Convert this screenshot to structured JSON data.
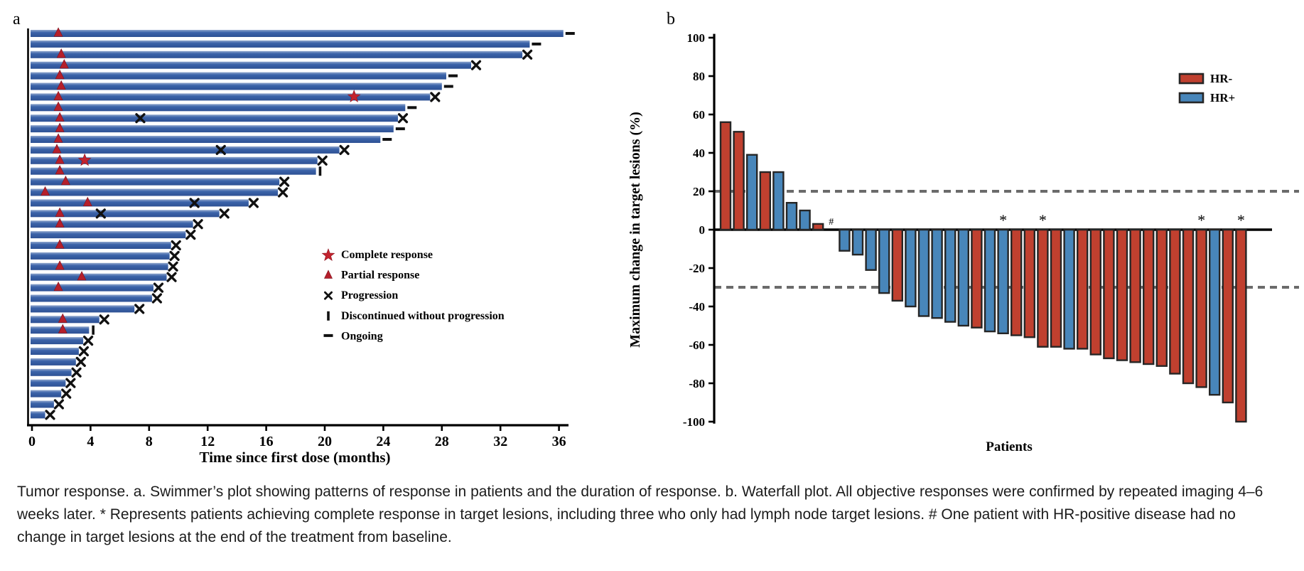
{
  "colors": {
    "swimmer_bar": "#3b63a9",
    "swimmer_bar_light": "#8fa6cd",
    "marker_red": "#b51f2b",
    "star_red": "#c3232e",
    "hr_neg": "#c0402f",
    "hr_pos": "#4886ba",
    "axis": "#000000",
    "marker_black": "#111111",
    "ref_line": "#6b6b6b",
    "waterfall_border": "#262626",
    "caption_text": "#1b1b1b"
  },
  "chart_data": [
    {
      "type": "bar",
      "subtype": "swimmer",
      "panel_label": "a",
      "xlabel": "Time since first dose (months)",
      "xticks": [
        0,
        4,
        8,
        12,
        16,
        20,
        24,
        28,
        32,
        36
      ],
      "xlim": [
        0,
        37.5
      ],
      "grid": false,
      "legend_position": "right-middle",
      "legend": [
        {
          "icon": "star-icon",
          "label": "Complete response"
        },
        {
          "icon": "triangle-icon",
          "label": "Partial response"
        },
        {
          "icon": "cross-icon",
          "label": "Progression"
        },
        {
          "icon": "vbar-icon",
          "label": "Discontinued without progression"
        },
        {
          "icon": "dash-icon",
          "label": "Ongoing"
        }
      ],
      "marker_meanings": {
        "cr": "Complete response",
        "pr": "Partial response",
        "prog": "Progression",
        "disc": "Discontinued without progression",
        "ongoing": "Ongoing"
      },
      "patients": [
        {
          "duration": 36.3,
          "end": "ongoing",
          "events": [
            {
              "type": "pr",
              "t": 1.8
            }
          ]
        },
        {
          "duration": 34.0,
          "end": "ongoing",
          "events": []
        },
        {
          "duration": 33.5,
          "end": "prog",
          "events": [
            {
              "type": "pr",
              "t": 2.0
            }
          ]
        },
        {
          "duration": 30.0,
          "end": "prog",
          "events": [
            {
              "type": "pr",
              "t": 2.2
            }
          ]
        },
        {
          "duration": 28.3,
          "end": "ongoing",
          "events": [
            {
              "type": "pr",
              "t": 1.9
            }
          ]
        },
        {
          "duration": 28.0,
          "end": "ongoing",
          "events": [
            {
              "type": "pr",
              "t": 2.0
            }
          ]
        },
        {
          "duration": 27.2,
          "end": "prog",
          "events": [
            {
              "type": "pr",
              "t": 1.8
            },
            {
              "type": "cr",
              "t": 22.0
            }
          ]
        },
        {
          "duration": 25.5,
          "end": "ongoing",
          "events": [
            {
              "type": "pr",
              "t": 1.8
            }
          ]
        },
        {
          "duration": 25.0,
          "end": "prog",
          "events": [
            {
              "type": "pr",
              "t": 1.9
            },
            {
              "type": "prog",
              "t": 7.4
            }
          ]
        },
        {
          "duration": 24.7,
          "end": "ongoing",
          "events": [
            {
              "type": "pr",
              "t": 1.9
            }
          ]
        },
        {
          "duration": 23.8,
          "end": "ongoing",
          "events": [
            {
              "type": "pr",
              "t": 1.8
            }
          ]
        },
        {
          "duration": 21.0,
          "end": "prog",
          "events": [
            {
              "type": "pr",
              "t": 1.7
            },
            {
              "type": "prog",
              "t": 12.9
            }
          ]
        },
        {
          "duration": 19.5,
          "end": "prog",
          "events": [
            {
              "type": "pr",
              "t": 1.9
            },
            {
              "type": "cr",
              "t": 3.6
            }
          ]
        },
        {
          "duration": 19.4,
          "end": "disc",
          "events": [
            {
              "type": "pr",
              "t": 1.9
            }
          ]
        },
        {
          "duration": 16.9,
          "end": "prog",
          "events": [
            {
              "type": "pr",
              "t": 2.3
            }
          ]
        },
        {
          "duration": 16.8,
          "end": "prog",
          "events": [
            {
              "type": "pr",
              "t": 0.9
            }
          ]
        },
        {
          "duration": 14.8,
          "end": "prog",
          "events": [
            {
              "type": "pr",
              "t": 3.8
            },
            {
              "type": "prog",
              "t": 11.1
            }
          ]
        },
        {
          "duration": 12.8,
          "end": "prog",
          "events": [
            {
              "type": "pr",
              "t": 1.9
            },
            {
              "type": "prog",
              "t": 4.7
            }
          ]
        },
        {
          "duration": 11.0,
          "end": "prog",
          "events": [
            {
              "type": "pr",
              "t": 1.9
            }
          ]
        },
        {
          "duration": 10.5,
          "end": "prog",
          "events": []
        },
        {
          "duration": 9.5,
          "end": "prog",
          "events": [
            {
              "type": "pr",
              "t": 1.9
            }
          ]
        },
        {
          "duration": 9.4,
          "end": "prog",
          "events": []
        },
        {
          "duration": 9.3,
          "end": "prog",
          "events": [
            {
              "type": "pr",
              "t": 1.9
            }
          ]
        },
        {
          "duration": 9.2,
          "end": "prog",
          "events": [
            {
              "type": "pr",
              "t": 3.4
            }
          ]
        },
        {
          "duration": 8.3,
          "end": "prog",
          "events": [
            {
              "type": "pr",
              "t": 1.8
            }
          ]
        },
        {
          "duration": 8.2,
          "end": "prog",
          "events": []
        },
        {
          "duration": 7.0,
          "end": "prog",
          "events": []
        },
        {
          "duration": 4.6,
          "end": "prog",
          "events": [
            {
              "type": "pr",
              "t": 2.1
            }
          ]
        },
        {
          "duration": 3.9,
          "end": "disc",
          "events": [
            {
              "type": "pr",
              "t": 2.1
            }
          ]
        },
        {
          "duration": 3.5,
          "end": "prog",
          "events": []
        },
        {
          "duration": 3.2,
          "end": "prog",
          "events": []
        },
        {
          "duration": 3.0,
          "end": "prog",
          "events": []
        },
        {
          "duration": 2.7,
          "end": "prog",
          "events": []
        },
        {
          "duration": 2.3,
          "end": "prog",
          "events": []
        },
        {
          "duration": 2.0,
          "end": "prog",
          "events": []
        },
        {
          "duration": 1.5,
          "end": "prog",
          "events": []
        },
        {
          "duration": 0.9,
          "end": "prog",
          "events": []
        }
      ]
    },
    {
      "type": "bar",
      "subtype": "waterfall",
      "panel_label": "b",
      "ylabel": "Maximum change in target lesions (%)",
      "xlabel": "Patients",
      "yticks": [
        100,
        80,
        60,
        40,
        20,
        0,
        -20,
        -40,
        -60,
        -80,
        -100
      ],
      "ylim": [
        -100,
        100
      ],
      "grid": false,
      "reference_lines": [
        20,
        -30
      ],
      "legend_position": "top-right",
      "legend": [
        {
          "name": "HR-",
          "color_key": "hr_neg"
        },
        {
          "name": "HR+",
          "color_key": "hr_pos"
        }
      ],
      "annotations": {
        "asterisk": "*",
        "hash": "#"
      },
      "values": [
        {
          "v": 56,
          "g": "HR-"
        },
        {
          "v": 51,
          "g": "HR-"
        },
        {
          "v": 39,
          "g": "HR+"
        },
        {
          "v": 30,
          "g": "HR-"
        },
        {
          "v": 30,
          "g": "HR+"
        },
        {
          "v": 14,
          "g": "HR+"
        },
        {
          "v": 10,
          "g": "HR+"
        },
        {
          "v": 3,
          "g": "HR-"
        },
        {
          "v": 0,
          "g": "HR+",
          "mark": "#"
        },
        {
          "v": -11,
          "g": "HR+"
        },
        {
          "v": -13,
          "g": "HR+"
        },
        {
          "v": -21,
          "g": "HR+"
        },
        {
          "v": -33,
          "g": "HR+"
        },
        {
          "v": -37,
          "g": "HR-"
        },
        {
          "v": -40,
          "g": "HR+"
        },
        {
          "v": -45,
          "g": "HR+"
        },
        {
          "v": -46,
          "g": "HR+"
        },
        {
          "v": -48,
          "g": "HR+"
        },
        {
          "v": -50,
          "g": "HR+"
        },
        {
          "v": -51,
          "g": "HR-"
        },
        {
          "v": -53,
          "g": "HR+"
        },
        {
          "v": -54,
          "g": "HR+",
          "mark": "*"
        },
        {
          "v": -55,
          "g": "HR-"
        },
        {
          "v": -56,
          "g": "HR-"
        },
        {
          "v": -61,
          "g": "HR-",
          "mark": "*"
        },
        {
          "v": -61,
          "g": "HR-"
        },
        {
          "v": -62,
          "g": "HR+"
        },
        {
          "v": -62,
          "g": "HR-"
        },
        {
          "v": -65,
          "g": "HR-"
        },
        {
          "v": -67,
          "g": "HR-"
        },
        {
          "v": -68,
          "g": "HR-"
        },
        {
          "v": -69,
          "g": "HR-"
        },
        {
          "v": -70,
          "g": "HR-"
        },
        {
          "v": -71,
          "g": "HR-"
        },
        {
          "v": -75,
          "g": "HR-"
        },
        {
          "v": -80,
          "g": "HR-"
        },
        {
          "v": -82,
          "g": "HR-",
          "mark": "*"
        },
        {
          "v": -86,
          "g": "HR+"
        },
        {
          "v": -90,
          "g": "HR-"
        },
        {
          "v": -100,
          "g": "HR-",
          "mark": "*"
        }
      ]
    }
  ],
  "caption": {
    "text": "Tumor response. a. Swimmer’s plot showing patterns of response in patients and the duration of response. b. Waterfall plot. All objective responses were confirmed by repeated imaging 4–6 weeks later. * Represents patients achieving complete response in target lesions, including three who only had lymph node target lesions. # One patient with HR-positive disease had no change in target lesions at the end of the treatment from baseline."
  }
}
